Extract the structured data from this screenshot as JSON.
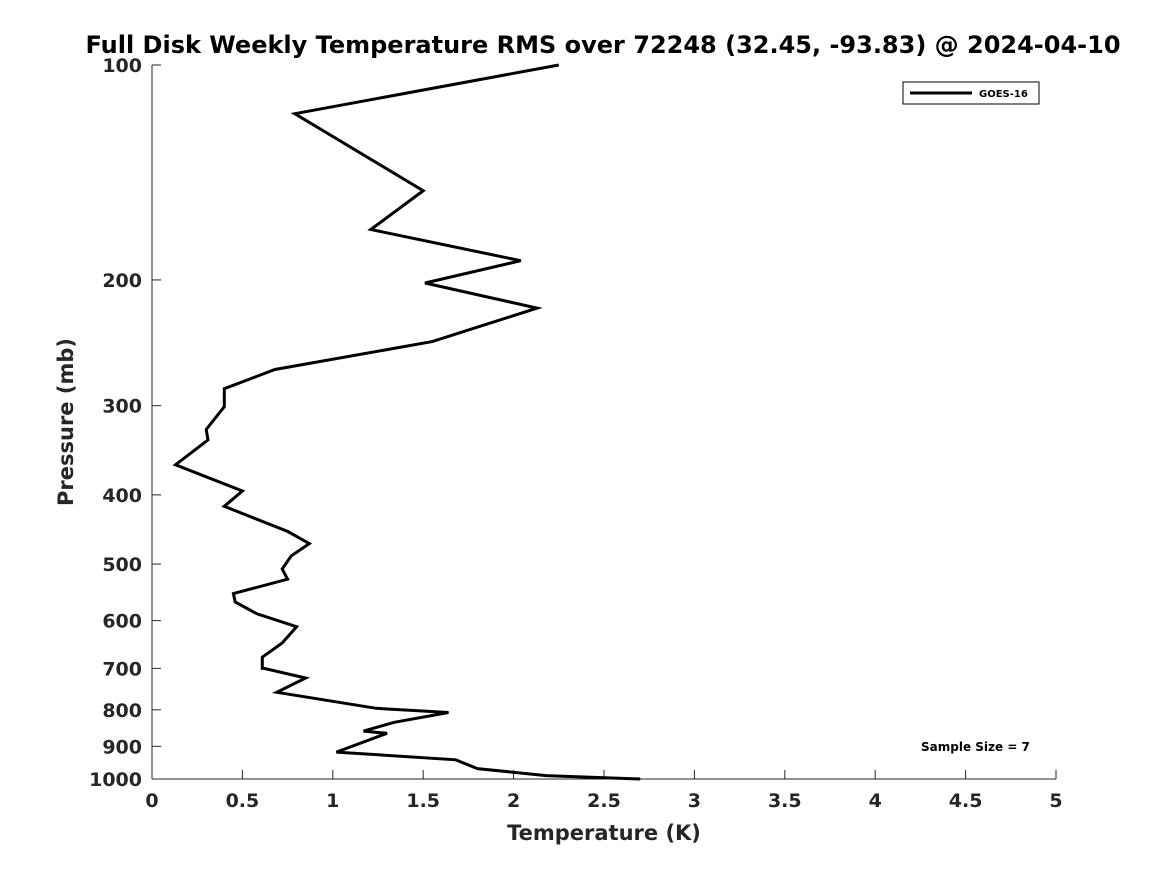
{
  "chart_data": {
    "type": "line",
    "title": "Full Disk Weekly Temperature RMS over 72248 (32.45, -93.83) @ 2024-04-10",
    "xlabel": "Temperature (K)",
    "ylabel": "Pressure (mb)",
    "xlim": [
      0,
      5
    ],
    "ylim": [
      100,
      1000
    ],
    "y_scale": "log",
    "y_reversed": true,
    "x_ticks": [
      0,
      0.5,
      1,
      1.5,
      2,
      2.5,
      3,
      3.5,
      4,
      4.5,
      5
    ],
    "x_tick_labels": [
      "0",
      "0.5",
      "1",
      "1.5",
      "2",
      "2.5",
      "3",
      "3.5",
      "4",
      "4.5",
      "5"
    ],
    "y_ticks": [
      100,
      200,
      300,
      400,
      500,
      600,
      700,
      800,
      900,
      1000
    ],
    "y_tick_labels": [
      "100",
      "200",
      "300",
      "400",
      "500",
      "600",
      "700",
      "800",
      "900",
      "1000"
    ],
    "grid": false,
    "legend_position": "top-right",
    "annotation": "Sample Size = 7",
    "series": [
      {
        "name": "GOES-16",
        "color": "#000000",
        "x": [
          2.25,
          0.79,
          1.5,
          1.21,
          2.04,
          1.51,
          2.13,
          1.55,
          0.68,
          0.4,
          0.4,
          0.3,
          0.31,
          0.13,
          0.5,
          0.4,
          0.75,
          0.87,
          0.77,
          0.72,
          0.75,
          0.45,
          0.46,
          0.58,
          0.8,
          0.72,
          0.61,
          0.61,
          0.62,
          0.85,
          0.69,
          1.24,
          1.64,
          1.34,
          1.17,
          1.3,
          1.02,
          1.68,
          1.8,
          2.18,
          2.7
        ],
        "y": [
          100,
          117,
          150,
          170,
          188,
          202,
          219,
          244,
          267,
          284,
          301,
          324,
          335,
          363,
          395,
          415,
          450,
          468,
          487,
          508,
          525,
          550,
          565,
          587,
          612,
          645,
          675,
          700,
          700,
          722,
          756,
          796,
          807,
          833,
          857,
          863,
          917,
          940,
          967,
          989,
          1000
        ]
      }
    ]
  }
}
